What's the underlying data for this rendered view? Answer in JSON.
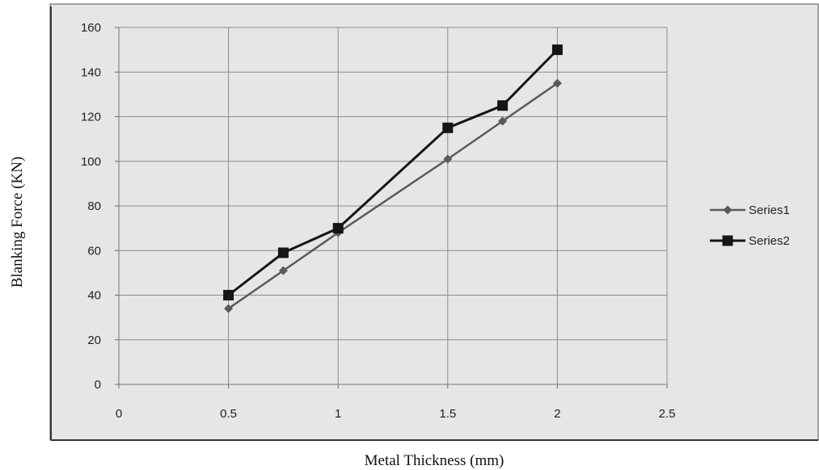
{
  "chart_data": {
    "type": "line",
    "xlabel": "Metal Thickness (mm)",
    "ylabel": "Blanking Force (KN)",
    "xlim": [
      0,
      2.5
    ],
    "ylim": [
      0,
      160
    ],
    "x_ticks": [
      "0",
      "0.5",
      "1",
      "1.5",
      "2",
      "2.5"
    ],
    "y_ticks": [
      "0",
      "20",
      "40",
      "60",
      "80",
      "100",
      "120",
      "140",
      "160"
    ],
    "grid": true,
    "legend_position": "right",
    "series": [
      {
        "name": "Series1",
        "marker": "diamond",
        "color": "#5a5a5a",
        "x": [
          0.5,
          0.75,
          1,
          1.5,
          1.75,
          2
        ],
        "y": [
          34,
          51,
          68,
          101,
          118,
          135
        ]
      },
      {
        "name": "Series2",
        "marker": "square",
        "color": "#151515",
        "x": [
          0.5,
          0.75,
          1,
          1.5,
          1.75,
          2
        ],
        "y": [
          40,
          59,
          70,
          115,
          125,
          150
        ]
      }
    ]
  },
  "colors": {
    "plot_background": "#e6e6e6",
    "grid": "#8c8c8c"
  }
}
